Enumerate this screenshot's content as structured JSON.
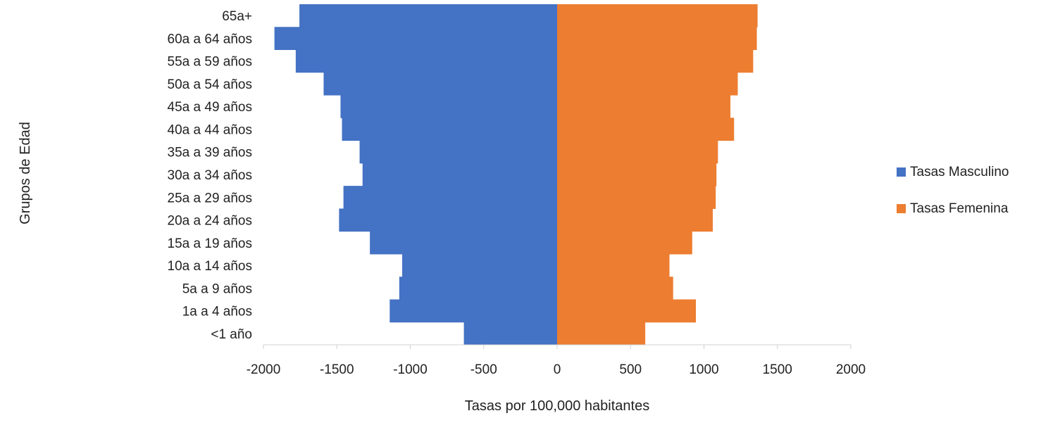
{
  "chart_data": {
    "type": "bar",
    "orientation": "horizontal",
    "categories": [
      "<1 año",
      "1a a 4 años",
      "5a a 9 años",
      "10a  a 14 años",
      "15a  a 19 años",
      "20a a 24 años",
      "25a a 29 años",
      "30a a 34 años",
      "35a a 39 años",
      "40a a 44 años",
      "45a a 49 años",
      "50a a 54 años",
      "55a a 59 años",
      "60a a 64 años",
      "65a+"
    ],
    "series": [
      {
        "name": "Tasas Masculino",
        "color": "#4472C4",
        "values": [
          -635,
          -1140,
          -1075,
          -1055,
          -1275,
          -1485,
          -1455,
          -1325,
          -1345,
          -1465,
          -1475,
          -1590,
          -1780,
          -1925,
          -1755
        ]
      },
      {
        "name": "Tasas Femenina",
        "color": "#ED7D31",
        "values": [
          600,
          945,
          790,
          765,
          920,
          1060,
          1080,
          1085,
          1095,
          1205,
          1180,
          1230,
          1335,
          1360,
          1365
        ]
      }
    ],
    "xlabel": "Tasas por 100,000 habitantes",
    "ylabel": "Grupos de Edad",
    "xlim": [
      -2000,
      2000
    ],
    "xticks": [
      -2000,
      -1500,
      -1000,
      -500,
      0,
      500,
      1000,
      1500,
      2000
    ],
    "xtick_labels": [
      "-2000",
      "-1500",
      "-1000",
      "-500",
      "0",
      "500",
      "1000",
      "1500",
      "2000"
    ],
    "grid": false,
    "legend_position": "right"
  }
}
